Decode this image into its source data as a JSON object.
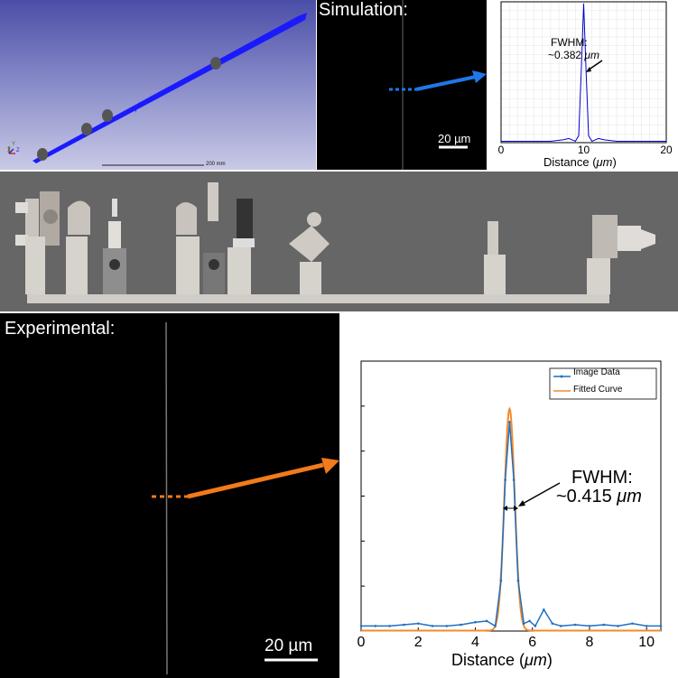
{
  "ray_trace": {
    "scale_label": "200 mm",
    "axis_labels": {
      "x": "X",
      "y": "Y",
      "z": "Z"
    },
    "colors": {
      "beam": "#1a1aff",
      "lens": "#555555"
    }
  },
  "simulation": {
    "title": "Simulation:",
    "scalebar_label": "20 µm",
    "colors": {
      "arrow": "#1f77e8",
      "background": "#000000"
    }
  },
  "sim_plot": {
    "xlabel_prefix": "Distance (",
    "xlabel_unit": "μm",
    "xlabel_suffix": ")",
    "xticks": [
      "0",
      "10",
      "20"
    ],
    "fwhm_label": "FWHM:",
    "fwhm_value": "~0.382 ",
    "fwhm_unit": "μm",
    "color": "#0000cc"
  },
  "experimental": {
    "title": "Experimental:",
    "scalebar_label": "20 µm",
    "colors": {
      "arrow": "#f27a1a",
      "background": "#000000"
    }
  },
  "exp_plot": {
    "xlabel_prefix": "Distance (",
    "xlabel_unit": "μm",
    "xlabel_suffix": ")",
    "xticks": [
      "0",
      "2",
      "4",
      "6",
      "8",
      "10"
    ],
    "fwhm_label": "FWHM:",
    "fwhm_value": "~0.415 ",
    "fwhm_unit": "μm",
    "legend": [
      "Image Data",
      "Fitted Curve"
    ],
    "colors": {
      "data": "#1f6fc5",
      "fit": "#f28c28"
    }
  },
  "chart_data": [
    {
      "type": "line",
      "xlabel": "Distance (μm)",
      "xlim": [
        0,
        20
      ],
      "ylim": [
        0,
        1
      ],
      "grid": true,
      "series": [
        {
          "values": [
            [
              0,
              0.01
            ],
            [
              6,
              0.01
            ],
            [
              7.5,
              0.02
            ],
            [
              8.2,
              0.03
            ],
            [
              8.6,
              0.02
            ],
            [
              9.0,
              0.01
            ],
            [
              9.4,
              0.05
            ],
            [
              9.7,
              0.5
            ],
            [
              10.0,
              1.0
            ],
            [
              10.3,
              0.5
            ],
            [
              10.6,
              0.05
            ],
            [
              11.0,
              0.01
            ],
            [
              11.4,
              0.02
            ],
            [
              11.8,
              0.03
            ],
            [
              12.5,
              0.02
            ],
            [
              14,
              0.01
            ],
            [
              20,
              0.01
            ]
          ]
        }
      ]
    },
    {
      "type": "line",
      "xlabel": "Distance (μm)",
      "xlim": [
        0,
        10.5
      ],
      "ylim": [
        0,
        1
      ],
      "legend_position": "top-right",
      "series": [
        {
          "name": "Image Data",
          "values": [
            [
              0,
              0.02
            ],
            [
              0.5,
              0.02
            ],
            [
              1,
              0.02
            ],
            [
              1.5,
              0.025
            ],
            [
              2,
              0.03
            ],
            [
              2.5,
              0.02
            ],
            [
              3,
              0.02
            ],
            [
              3.5,
              0.025
            ],
            [
              4,
              0.035
            ],
            [
              4.4,
              0.04
            ],
            [
              4.7,
              0.02
            ],
            [
              4.9,
              0.2
            ],
            [
              5.05,
              0.6
            ],
            [
              5.2,
              0.83
            ],
            [
              5.35,
              0.6
            ],
            [
              5.5,
              0.2
            ],
            [
              5.7,
              0.03
            ],
            [
              5.9,
              0.04
            ],
            [
              6.1,
              0.02
            ],
            [
              6.4,
              0.085
            ],
            [
              6.7,
              0.03
            ],
            [
              7,
              0.02
            ],
            [
              7.5,
              0.025
            ],
            [
              8,
              0.02
            ],
            [
              8.5,
              0.025
            ],
            [
              9,
              0.02
            ],
            [
              9.5,
              0.03
            ],
            [
              10,
              0.02
            ],
            [
              10.5,
              0.02
            ]
          ]
        },
        {
          "name": "Fitted Curve",
          "values": "gaussian"
        }
      ]
    }
  ]
}
